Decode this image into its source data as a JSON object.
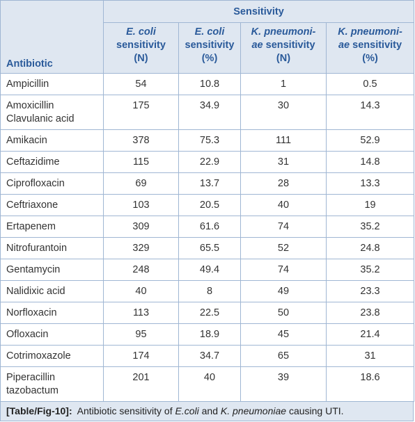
{
  "table": {
    "group_header": "Sensitivity",
    "first_header": "Antibiotic",
    "headers": [
      {
        "line1": "E. coli",
        "line2": "sensitivity",
        "line3": "(N)"
      },
      {
        "line1": "E. coli",
        "line2": "sensitivity",
        "line3": "(%)"
      },
      {
        "line1": "K. pneumoni-",
        "line2_italic": "ae",
        "line2": "sensitivity",
        "line3": "(N)"
      },
      {
        "line1": "K. pneumoni-",
        "line2_italic": "ae",
        "line2": "sensitivity",
        "line3": "(%)"
      }
    ],
    "rows": [
      [
        "Ampicillin",
        54,
        10.8,
        1,
        0.5
      ],
      [
        "Amoxicillin Clavulanic acid",
        175,
        34.9,
        30,
        14.3
      ],
      [
        "Amikacin",
        378,
        75.3,
        111,
        52.9
      ],
      [
        "Ceftazidime",
        115,
        22.9,
        31,
        14.8
      ],
      [
        "Ciprofloxacin",
        69,
        13.7,
        28,
        13.3
      ],
      [
        "Ceftriaxone",
        103,
        20.5,
        40,
        19
      ],
      [
        "Ertapenem",
        309,
        61.6,
        74,
        35.2
      ],
      [
        "Nitrofurantoin",
        329,
        65.5,
        52,
        24.8
      ],
      [
        "Gentamycin",
        248,
        49.4,
        74,
        35.2
      ],
      [
        "Nalidixic acid",
        40,
        8,
        49,
        23.3
      ],
      [
        "Norfloxacin",
        113,
        22.5,
        50,
        23.8
      ],
      [
        "Ofloxacin",
        95,
        18.9,
        45,
        21.4
      ],
      [
        "Cotrimoxazole",
        174,
        34.7,
        65,
        31
      ],
      [
        "Piperacillin tazobactum",
        201,
        40,
        39,
        18.6
      ]
    ]
  },
  "caption": [
    {
      "text": "[Table/Fig-10]:",
      "bold": true
    },
    {
      "text": "Antibiotic sensitivity of"
    },
    {
      "text": "E.coli",
      "italic": true
    },
    {
      "text": "and"
    },
    {
      "text": "K. pneumoniae",
      "italic": true
    },
    {
      "text": "causing UTI."
    }
  ]
}
